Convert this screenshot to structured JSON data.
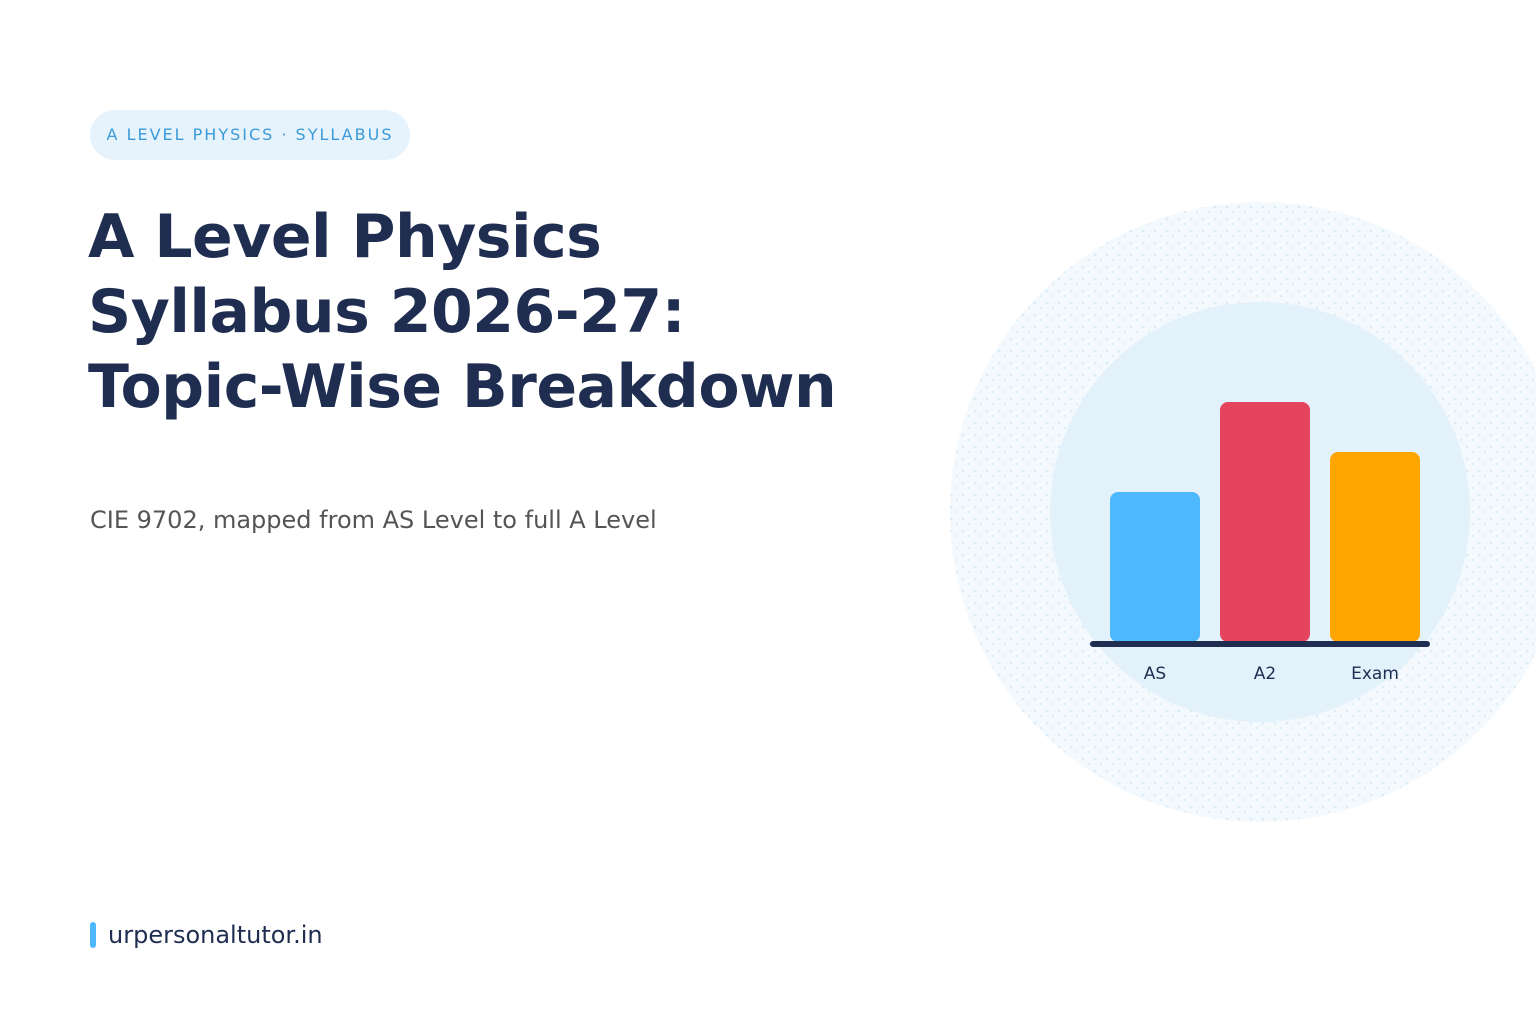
{
  "badge": "A LEVEL PHYSICS · SYLLABUS",
  "title": {
    "lines": [
      "A Level Physics",
      "Syllabus 2026-27:",
      "Topic-Wise Breakdown"
    ]
  },
  "subtitle": "CIE 9702, mapped from AS Level to full A Level",
  "illustration": {
    "labels": [
      "AS",
      "A2",
      "Exam"
    ]
  },
  "footer": "urpersonaltutor.in"
}
